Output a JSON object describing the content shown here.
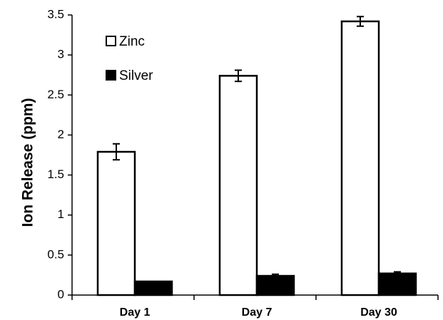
{
  "chart_data": {
    "type": "bar",
    "title": "",
    "xlabel": "",
    "ylabel": "Ion Release (ppm)",
    "categories": [
      "Day 1",
      "Day 7",
      "Day 30"
    ],
    "ylim": [
      0,
      3.5
    ],
    "yticks": [
      "0",
      "0.5",
      "1",
      "1.5",
      "2",
      "2.5",
      "3",
      "3.5"
    ],
    "grid": false,
    "legend_position": "top-left",
    "series": [
      {
        "name": "Zinc",
        "values": [
          1.79,
          2.74,
          3.42
        ],
        "errors": [
          0.1,
          0.07,
          0.06
        ],
        "fill": "#ffffff",
        "stroke": "#000000"
      },
      {
        "name": "Silver",
        "values": [
          0.17,
          0.24,
          0.27
        ],
        "errors": [
          0.0,
          0.02,
          0.02
        ],
        "fill": "#000000",
        "stroke": "#000000"
      }
    ]
  }
}
